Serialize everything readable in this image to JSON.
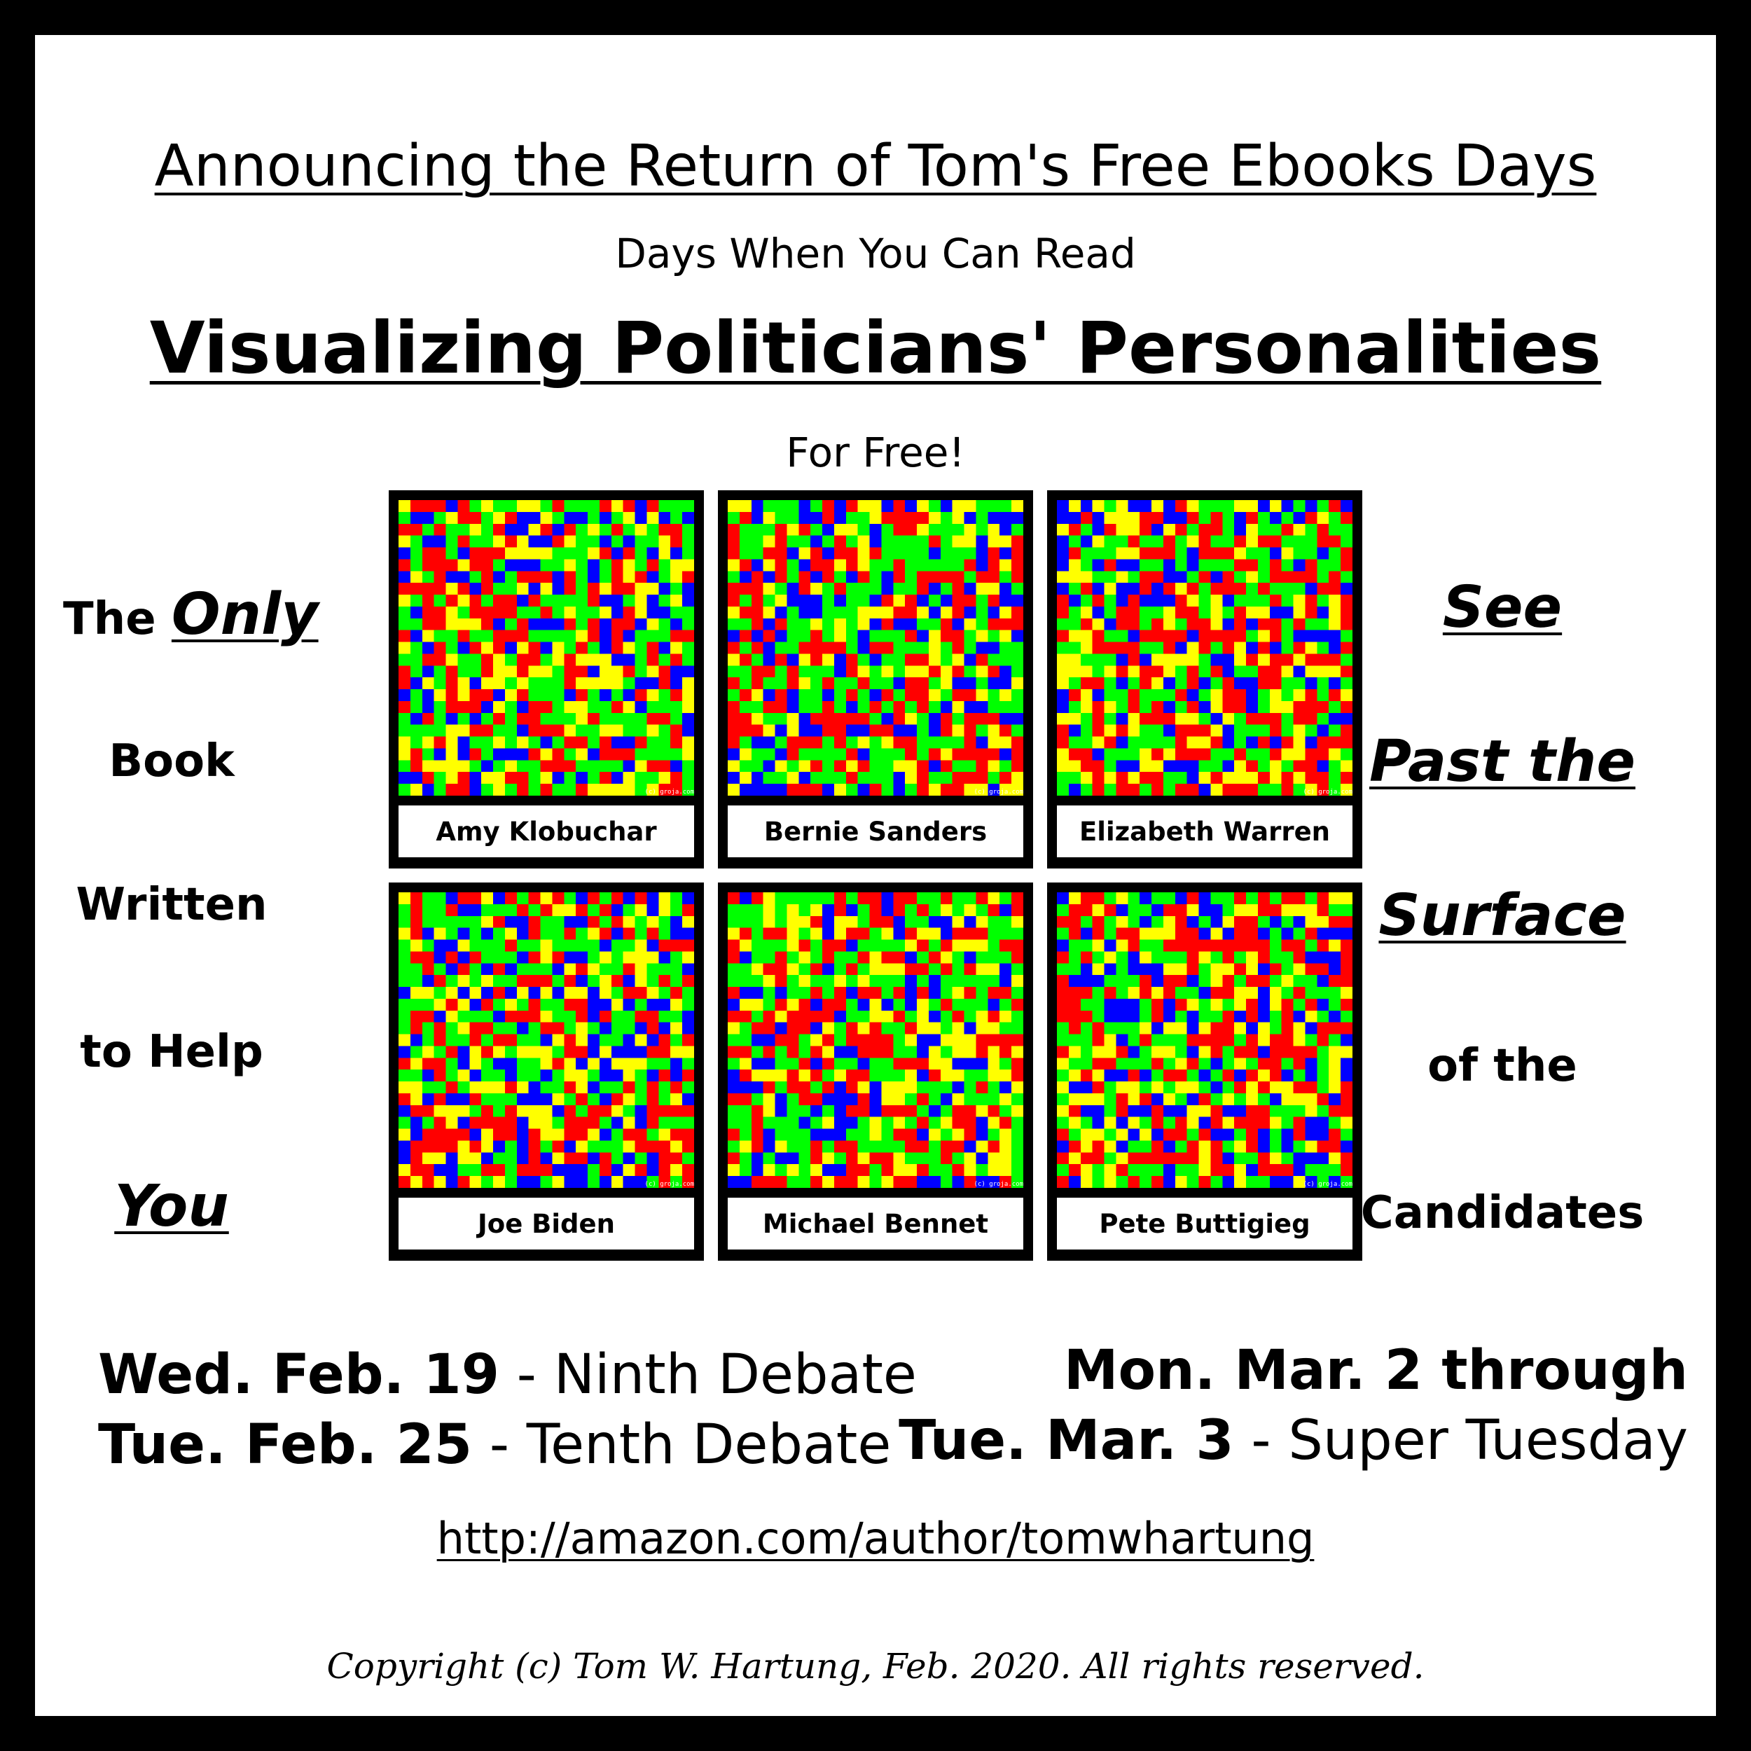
{
  "poster": {
    "headline": "Announcing the Return of Tom's Free Ebooks Days",
    "subline": "Days When You Can Read",
    "book_title": "Visualizing Politicians' Personalities",
    "for_free": "For Free!",
    "left_column": [
      "The",
      "Only",
      "Book",
      "Written",
      "to Help",
      "You"
    ],
    "right_column": [
      "See",
      "Past the",
      "Surface",
      "of the",
      "Candidates"
    ],
    "dates_left": [
      {
        "date": "Wed. Feb. 19",
        "event": " - Ninth Debate"
      },
      {
        "date": "Tue. Feb. 25",
        "event": " - Tenth Debate"
      }
    ],
    "dates_right": [
      {
        "date": "Mon. Mar. 2 through",
        "event": ""
      },
      {
        "date": "Tue. Mar. 3",
        "event": " - Super Tuesday"
      }
    ],
    "url": "http://amazon.com/author/tomwhartung",
    "copyright": "Copyright (c) Tom W. Hartung, Feb. 2020.  All rights reserved.",
    "credit": "(c) groja.com",
    "palette": [
      "#ff0000",
      "#00ff00",
      "#0000ff",
      "#ffff00"
    ],
    "candidates": [
      {
        "name": "Amy Klobuchar"
      },
      {
        "name": "Bernie Sanders"
      },
      {
        "name": "Elizabeth Warren"
      },
      {
        "name": "Joe Biden"
      },
      {
        "name": "Michael Bennet"
      },
      {
        "name": "Pete Buttigieg"
      }
    ]
  }
}
